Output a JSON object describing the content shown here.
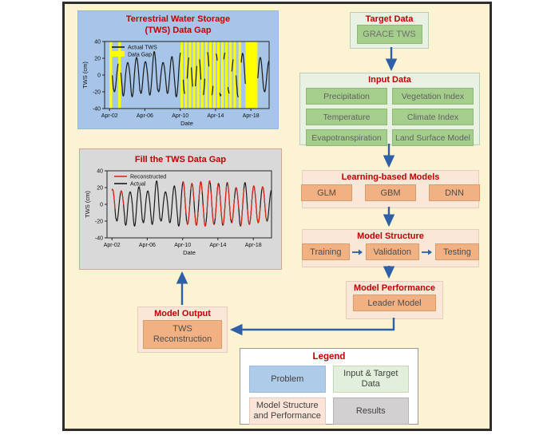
{
  "diagram": {
    "flow": {
      "target": {
        "title": "Target Data",
        "items": [
          "GRACE TWS"
        ]
      },
      "input": {
        "title": "Input Data",
        "items": [
          "Precipitation",
          "Vegetation Index",
          "Temperature",
          "Climate Index",
          "Evapotranspiration",
          "Land Surface Model"
        ]
      },
      "models": {
        "title": "Learning-based Models",
        "items": [
          "GLM",
          "GBM",
          "DNN"
        ]
      },
      "structure": {
        "title": "Model Structure",
        "items": [
          "Training",
          "Validation",
          "Testing"
        ]
      },
      "performance": {
        "title": "Model Performance",
        "items": [
          "Leader Model"
        ]
      },
      "output": {
        "title": "Model Output",
        "items": [
          "TWS Reconstruction"
        ]
      }
    },
    "legend": {
      "title": "Legend",
      "items": [
        {
          "label": "Problem",
          "fill": "#AECBE9",
          "border": "#9DBCDC"
        },
        {
          "label": "Input & Target Data",
          "fill": "#E2EFDA",
          "border": "#C4D8B4"
        },
        {
          "label": "Model Structure and Performance",
          "fill": "#FBE5D8",
          "border": "#E4C9B9"
        },
        {
          "label": "Results",
          "fill": "#D2D0D0",
          "border": "#B7B4B4"
        }
      ]
    },
    "colors": {
      "background": "#FCF3D3",
      "frame_border": "#2E2E2E",
      "title_red": "#C00000",
      "arrow_blue": "#2E5FA8",
      "gap_yellow": "#FFFF00",
      "problem_blue": "#A6C5E8",
      "results_gray": "#D9D9D9",
      "input_green": "#A5CE8D",
      "model_orange": "#F2B183"
    }
  },
  "chart_data": [
    {
      "type": "line",
      "title": "Terrestrial Water Storage (TWS) Data Gap",
      "title_lines": [
        "Terrestrial Water Storage",
        "(TWS) Data Gap"
      ],
      "xlabel": "Date",
      "ylabel": "TWS (cm)",
      "ylim": [
        -40,
        40
      ],
      "yticks": [
        40,
        20,
        0,
        -20,
        -40
      ],
      "xticks": [
        "Apr-02",
        "Apr-06",
        "Apr-10",
        "Apr-14",
        "Apr-18"
      ],
      "xtick_years": [
        0,
        4,
        8,
        12,
        16
      ],
      "x_end_year": 18.05,
      "phase": 1.2,
      "peaks_by_year": [
        18,
        16,
        15,
        21,
        16,
        28,
        15,
        22,
        27,
        25,
        27,
        28,
        25,
        26,
        20,
        26,
        22,
        21,
        17
      ],
      "troughs_by_year": [
        23,
        20,
        25,
        26,
        22,
        24,
        20,
        22,
        26,
        24,
        25,
        26,
        24,
        25,
        22,
        26,
        24,
        22,
        20
      ],
      "gap_color": "#FFFF00",
      "data_gap_intervals_years": [
        [
          -0.05,
          0.3
        ],
        [
          1.0,
          1.28
        ],
        [
          8.05,
          8.32
        ],
        [
          8.51,
          8.78
        ],
        [
          8.97,
          9.24
        ],
        [
          9.43,
          9.7
        ],
        [
          9.89,
          10.16
        ],
        [
          10.35,
          10.62
        ],
        [
          10.81,
          11.08
        ],
        [
          11.27,
          11.54
        ],
        [
          11.73,
          12.0
        ],
        [
          12.19,
          12.46
        ],
        [
          12.65,
          12.92
        ],
        [
          13.11,
          13.38
        ],
        [
          13.57,
          13.84
        ],
        [
          14.03,
          14.3
        ],
        [
          14.6,
          14.88
        ],
        [
          15.4,
          16.75
        ]
      ],
      "legend": [
        {
          "label": "Actual TWS",
          "type": "line",
          "color": "#1a1a1a"
        },
        {
          "label": "Data Gap",
          "type": "box",
          "color": "#FFFF00"
        }
      ],
      "series": [
        {
          "name": "Actual TWS",
          "color": "#1a1a1a",
          "break_at_gaps": true
        }
      ]
    },
    {
      "type": "line",
      "title": "Fill the TWS Data Gap",
      "xlabel": "Date",
      "ylabel": "TWS (cm)",
      "ylim": [
        -40,
        40
      ],
      "yticks": [
        40,
        20,
        0,
        -20,
        -40
      ],
      "xticks": [
        "Apr-02",
        "Apr-06",
        "Apr-10",
        "Apr-14",
        "Apr-18"
      ],
      "xtick_years": [
        0,
        4,
        8,
        12,
        16
      ],
      "x_end_year": 18.05,
      "phase": 1.2,
      "peaks_by_year": [
        18,
        16,
        15,
        21,
        16,
        28,
        15,
        22,
        27,
        25,
        27,
        28,
        25,
        26,
        20,
        26,
        22,
        21,
        17
      ],
      "troughs_by_year": [
        23,
        20,
        25,
        26,
        22,
        24,
        20,
        22,
        26,
        24,
        25,
        26,
        24,
        25,
        22,
        26,
        24,
        22,
        20
      ],
      "legend": [
        {
          "label": "Reconstructed",
          "type": "line",
          "color": "#E0251B"
        },
        {
          "label": "Actual",
          "type": "line",
          "color": "#1a1a1a"
        }
      ],
      "series": [
        {
          "name": "Actual",
          "color": "#1a1a1a"
        },
        {
          "name": "Reconstructed",
          "color": "#E0251B",
          "draw_intervals_years": [
            [
              -0.05,
              0.36
            ],
            [
              0.94,
              1.34
            ],
            [
              7.99,
              8.38
            ],
            [
              8.45,
              8.84
            ],
            [
              8.91,
              9.3
            ],
            [
              9.37,
              9.76
            ],
            [
              9.83,
              10.22
            ],
            [
              10.29,
              10.68
            ],
            [
              10.75,
              11.14
            ],
            [
              11.21,
              11.6
            ],
            [
              11.67,
              12.06
            ],
            [
              12.13,
              12.52
            ],
            [
              12.59,
              12.98
            ],
            [
              13.05,
              13.44
            ],
            [
              13.51,
              13.9
            ],
            [
              13.97,
              14.36
            ],
            [
              14.54,
              14.94
            ],
            [
              15.34,
              16.81
            ],
            [
              16.95,
              17.55
            ]
          ]
        }
      ]
    }
  ]
}
